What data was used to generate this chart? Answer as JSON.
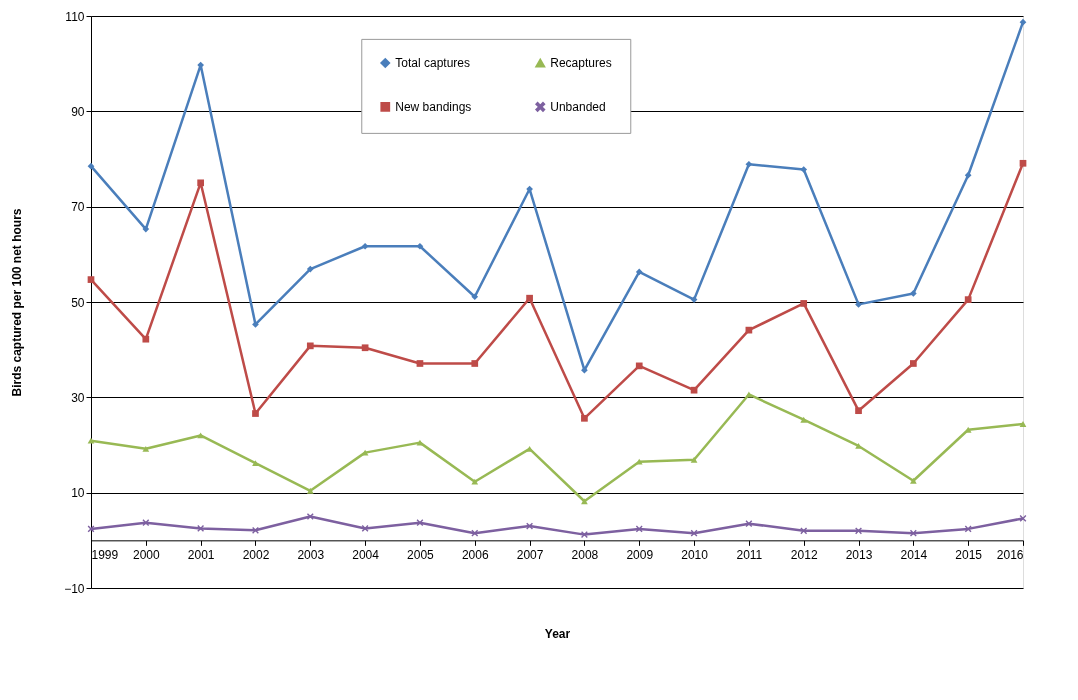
{
  "chart_data": {
    "type": "line",
    "xlabel": "Year",
    "ylabel": "Birds captured per 100 net hours",
    "categories": [
      "1999",
      "2000",
      "2001",
      "2002",
      "2003",
      "2004",
      "2005",
      "2006",
      "2007",
      "2008",
      "2009",
      "2010",
      "2011",
      "2012",
      "2013",
      "2014",
      "2015",
      "2016"
    ],
    "series": [
      {
        "name": "Total captures",
        "color": "#4a7ebb",
        "marker": "diamond",
        "values": [
          78.5,
          65.3,
          99.7,
          45.3,
          56.9,
          61.7,
          61.7,
          51.1,
          73.7,
          35.7,
          56.3,
          50.5,
          78.9,
          77.8,
          49.5,
          51.8,
          76.6,
          108.7
        ]
      },
      {
        "name": "New bandings",
        "color": "#be4b48",
        "marker": "square",
        "values": [
          54.7,
          42.2,
          75.0,
          26.6,
          40.8,
          40.4,
          37.1,
          37.1,
          50.8,
          25.6,
          36.6,
          31.5,
          44.1,
          49.7,
          27.2,
          37.1,
          50.5,
          79.1
        ]
      },
      {
        "name": "Recaptures",
        "color": "#98b954",
        "marker": "triangle",
        "values": [
          20.9,
          19.2,
          22.0,
          16.2,
          10.4,
          18.4,
          20.5,
          12.3,
          19.2,
          8.2,
          16.5,
          16.9,
          30.6,
          25.3,
          19.8,
          12.5,
          23.2,
          24.4
        ]
      },
      {
        "name": "Unbanded",
        "color": "#7d60a0",
        "marker": "cross",
        "values": [
          2.4,
          3.7,
          2.5,
          2.1,
          5.0,
          2.5,
          3.7,
          1.5,
          3.0,
          1.2,
          2.4,
          1.5,
          3.5,
          2.0,
          2.0,
          1.5,
          2.4,
          4.6
        ]
      }
    ],
    "ylim": [
      -10,
      110
    ],
    "yticks": [
      -10,
      10,
      30,
      50,
      70,
      90,
      110
    ],
    "grid": "y",
    "legend": "top"
  }
}
